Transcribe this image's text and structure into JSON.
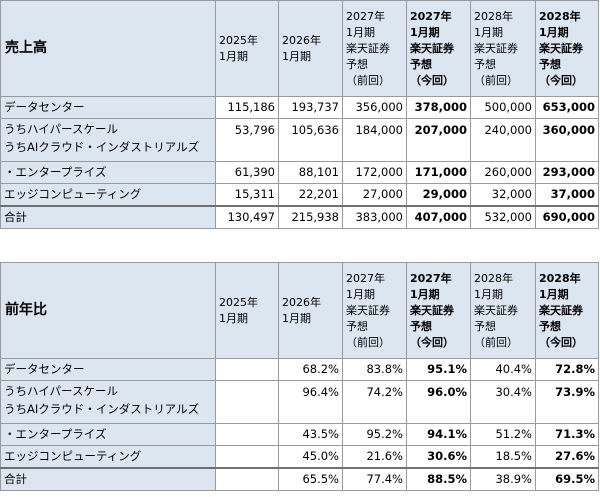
{
  "columns": [
    {
      "lines": [
        "2025年",
        "1月期"
      ],
      "bold": false
    },
    {
      "lines": [
        "2026年",
        "1月期"
      ],
      "bold": false
    },
    {
      "lines": [
        "2027年",
        "1月期",
        "楽天証券",
        "予想",
        "（前回）"
      ],
      "bold": false
    },
    {
      "lines": [
        "2027年",
        "1月期",
        "楽天証券",
        "予想",
        "（今回）"
      ],
      "bold": true
    },
    {
      "lines": [
        "2028年",
        "1月期",
        "楽天証券",
        "予想",
        "（前回）"
      ],
      "bold": false
    },
    {
      "lines": [
        "2028年",
        "1月期",
        "楽天証券",
        "予想",
        "（今回）"
      ],
      "bold": true
    }
  ],
  "sales": {
    "title": "売上高",
    "rows": {
      "datacenter": {
        "label": "データセンター",
        "values": [
          "115,186",
          "193,737",
          "356,000",
          "378,000",
          "500,000",
          "653,000"
        ]
      },
      "hyperscale": {
        "label": "うちハイパースケール",
        "values": [
          "53,796",
          "105,636",
          "184,000",
          "207,000",
          "240,000",
          "360,000"
        ]
      },
      "ai_cloud": {
        "label_line1": "うちAIクラウド・インダストリアルズ",
        "label_line2": "・エンタープライズ",
        "values": [
          "61,390",
          "88,101",
          "172,000",
          "171,000",
          "260,000",
          "293,000"
        ]
      },
      "edge": {
        "label": "エッジコンピューティング",
        "values": [
          "15,311",
          "22,201",
          "27,000",
          "29,000",
          "32,000",
          "37,000"
        ]
      },
      "total": {
        "label": "合計",
        "values": [
          "130,497",
          "215,938",
          "383,000",
          "407,000",
          "532,000",
          "690,000"
        ]
      }
    }
  },
  "yoy": {
    "title": "前年比",
    "rows": {
      "datacenter": {
        "label": "データセンター",
        "values": [
          "",
          "68.2%",
          "83.8%",
          "95.1%",
          "40.4%",
          "72.8%"
        ]
      },
      "hyperscale": {
        "label": "うちハイパースケール",
        "values": [
          "",
          "96.4%",
          "74.2%",
          "96.0%",
          "30.4%",
          "73.9%"
        ]
      },
      "ai_cloud": {
        "label_line1": "うちAIクラウド・インダストリアルズ",
        "label_line2": "・エンタープライズ",
        "values": [
          "",
          "43.5%",
          "95.2%",
          "94.1%",
          "51.2%",
          "71.3%"
        ]
      },
      "edge": {
        "label": "エッジコンピューティング",
        "values": [
          "",
          "45.0%",
          "21.6%",
          "30.6%",
          "18.5%",
          "27.6%"
        ]
      },
      "total": {
        "label": "合計",
        "values": [
          "",
          "65.5%",
          "77.4%",
          "88.5%",
          "38.9%",
          "69.5%"
        ]
      }
    }
  }
}
